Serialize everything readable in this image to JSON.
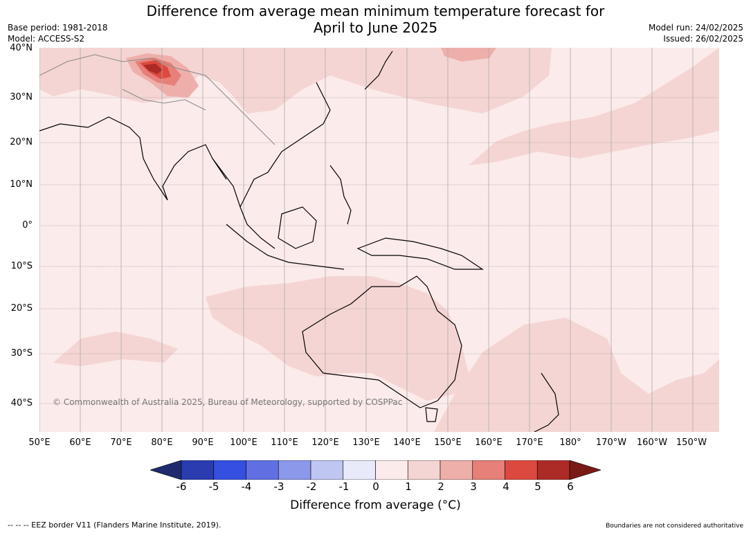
{
  "title_line1": "Difference from average mean minimum temperature forecast for",
  "title_line2": "April to June 2025",
  "base_period": "Base period: 1981-2018",
  "model": "Model: ACCESS-S2",
  "model_run": "Model run: 24/02/2025",
  "issued": "Issued: 26/02/2025",
  "copyright": "© Commonwealth of Australia 2025, Bureau of Meteorology, supported by COSPPac",
  "lat_labels": [
    "40°N",
    "30°N",
    "20°N",
    "10°N",
    "0°",
    "10°S",
    "20°S",
    "30°S",
    "40°S"
  ],
  "lon_labels": [
    "50°E",
    "60°E",
    "70°E",
    "80°E",
    "90°E",
    "100°E",
    "110°E",
    "120°E",
    "130°E",
    "140°E",
    "150°E",
    "160°E",
    "170°E",
    "180°",
    "170°W",
    "160°W",
    "150°W"
  ],
  "colorbar": {
    "ticks": [
      "-6",
      "-5",
      "-4",
      "-3",
      "-2",
      "-1",
      "0",
      "1",
      "2",
      "3",
      "4",
      "5",
      "6"
    ],
    "label": "Difference from average (°C)",
    "colors": [
      "#1f2a6e",
      "#2a3cb0",
      "#3550df",
      "#6070e2",
      "#8c98ea",
      "#c0c6f2",
      "#e8eafa",
      "#fbebea",
      "#f4d5d3",
      "#eeafaa",
      "#e68078",
      "#dc4a3f",
      "#ad2b26",
      "#7a1a16"
    ]
  },
  "footer_left": "-- -- -- EEZ border V11 (Flanders Marine Institute, 2019).",
  "footer_right": "Boundaries are not considered authoritative",
  "legend_colors": {
    "zero_to_one": "#fbebea",
    "one_to_two": "#f4d5d3",
    "two_to_three": "#eeafaa",
    "three_to_four": "#e68078",
    "four_to_five": "#dc4a3f",
    "five_to_six": "#ad2b26"
  }
}
